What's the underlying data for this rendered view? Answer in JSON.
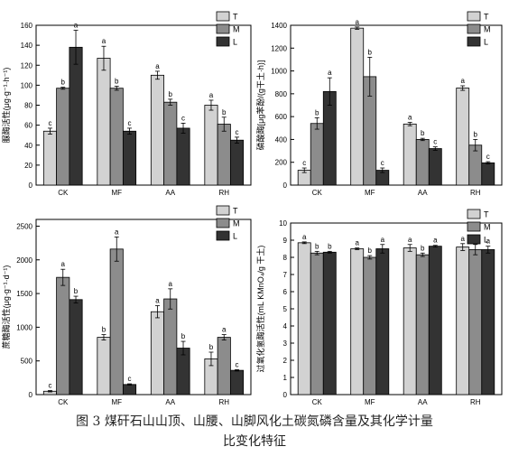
{
  "figure": {
    "caption_line1": "图 3   煤矸石山山顶、山腰、山脚风化土碳氮磷含量及其化学计量",
    "caption_line2": "比变化特征"
  },
  "colors": {
    "T": "#d2d2d2",
    "M": "#8c8c8c",
    "L": "#333333"
  },
  "chart_data": [
    {
      "type": "bar",
      "ylabel": "脲酶活性(μg·g⁻¹·h⁻¹)",
      "ylim": [
        0,
        160
      ],
      "yticks": [
        0,
        20,
        40,
        60,
        80,
        100,
        120,
        140,
        160
      ],
      "categories": [
        "CK",
        "MF",
        "AA",
        "RH"
      ],
      "legend": [
        "T",
        "M",
        "L"
      ],
      "series": [
        {
          "name": "T",
          "values": [
            54,
            127,
            110,
            80
          ],
          "errors": [
            3,
            12,
            4,
            5
          ],
          "letters": [
            "c",
            "a",
            "a",
            "a"
          ]
        },
        {
          "name": "M",
          "values": [
            97,
            97,
            83,
            61
          ],
          "errors": [
            1,
            2,
            3,
            7
          ],
          "letters": [
            "b",
            "b",
            "b",
            "b"
          ]
        },
        {
          "name": "L",
          "values": [
            138,
            54,
            57,
            45
          ],
          "errors": [
            17,
            3,
            5,
            3
          ],
          "letters": [
            "a",
            "c",
            "c",
            "c"
          ]
        }
      ]
    },
    {
      "type": "bar",
      "ylabel": "磷酸酶[μg苯酚/(g干土·h)]",
      "ylim": [
        0,
        1400
      ],
      "yticks": [
        0,
        200,
        400,
        600,
        800,
        1000,
        1200,
        1400
      ],
      "categories": [
        "CK",
        "MF",
        "AA",
        "RH"
      ],
      "legend": [
        "T",
        "M",
        "L"
      ],
      "series": [
        {
          "name": "T",
          "values": [
            130,
            1375,
            535,
            850
          ],
          "errors": [
            20,
            10,
            15,
            20
          ],
          "letters": [
            "c",
            "a",
            "a",
            "a"
          ]
        },
        {
          "name": "M",
          "values": [
            540,
            950,
            400,
            350
          ],
          "errors": [
            50,
            170,
            10,
            50
          ],
          "letters": [
            "b",
            "b",
            "b",
            "b"
          ]
        },
        {
          "name": "L",
          "values": [
            820,
            130,
            320,
            195
          ],
          "errors": [
            120,
            20,
            15,
            10
          ],
          "letters": [
            "a",
            "c",
            "c",
            "c"
          ]
        }
      ]
    },
    {
      "type": "bar",
      "ylabel": "蔗糖酶活性(μg·g⁻¹·d⁻¹)",
      "ylim": [
        0,
        2600
      ],
      "yticks": [
        0,
        500,
        1000,
        1500,
        2000,
        2500
      ],
      "categories": [
        "CK",
        "MF",
        "AA",
        "RH"
      ],
      "legend": [
        "T",
        "M",
        "L"
      ],
      "series": [
        {
          "name": "T",
          "values": [
            50,
            850,
            1230,
            530
          ],
          "errors": [
            10,
            40,
            90,
            100
          ],
          "letters": [
            "c",
            "b",
            "a",
            "b"
          ]
        },
        {
          "name": "M",
          "values": [
            1740,
            2160,
            1420,
            850
          ],
          "errors": [
            120,
            180,
            150,
            40
          ],
          "letters": [
            "a",
            "a",
            "a",
            "a"
          ]
        },
        {
          "name": "L",
          "values": [
            1410,
            150,
            690,
            360
          ],
          "errors": [
            50,
            10,
            100,
            10
          ],
          "letters": [
            "b",
            "c",
            "b",
            "c"
          ]
        }
      ]
    },
    {
      "type": "bar",
      "ylabel": "过氧化氢酶活性(mL KMnO₄/g 干土)",
      "ylim": [
        0,
        10
      ],
      "yticks": [
        0,
        1,
        2,
        3,
        4,
        5,
        6,
        7,
        8,
        9,
        10
      ],
      "categories": [
        "CK",
        "MF",
        "AA",
        "RH"
      ],
      "legend": [
        "T",
        "M",
        "L"
      ],
      "series": [
        {
          "name": "T",
          "values": [
            8.85,
            8.5,
            8.55,
            8.6
          ],
          "errors": [
            0.05,
            0.05,
            0.2,
            0.2
          ],
          "letters": [
            "a",
            "a",
            "a",
            "a"
          ]
        },
        {
          "name": "M",
          "values": [
            8.25,
            8.0,
            8.15,
            8.45
          ],
          "errors": [
            0.1,
            0.1,
            0.1,
            0.3
          ],
          "letters": [
            "b",
            "b",
            "b",
            "a"
          ]
        },
        {
          "name": "L",
          "values": [
            8.3,
            8.5,
            8.65,
            8.45
          ],
          "errors": [
            0.05,
            0.25,
            0.05,
            0.2
          ],
          "letters": [
            "b",
            "a",
            "a",
            "a"
          ]
        }
      ]
    }
  ]
}
